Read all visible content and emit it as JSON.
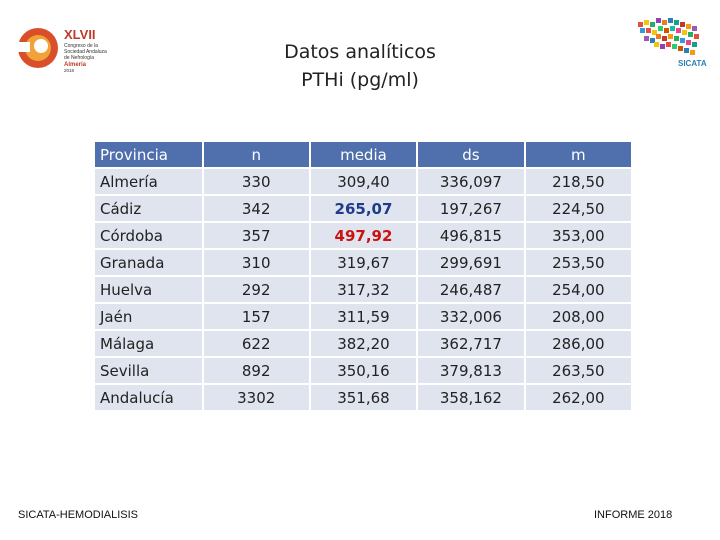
{
  "logo_left": {
    "number": "XLVII",
    "line1": "Congreso de la",
    "line2": "Sociedad Andaluza",
    "line3": "de Nefrología",
    "city": "Almería",
    "date": "2018"
  },
  "logo_right": {
    "name": "SICATA"
  },
  "title": {
    "line1": "Datos analíticos",
    "line2": "PTHi (pg/ml)"
  },
  "table": {
    "headers": [
      "Provincia",
      "n",
      "media",
      "ds",
      "m"
    ],
    "rows": [
      [
        "Almería",
        "330",
        "309,40",
        "336,097",
        "218,50"
      ],
      [
        "Cádiz",
        "342",
        "265,07",
        "197,267",
        "224,50"
      ],
      [
        "Córdoba",
        "357",
        "497,92",
        "496,815",
        "353,00"
      ],
      [
        "Granada",
        "310",
        "319,67",
        "299,691",
        "253,50"
      ],
      [
        "Huelva",
        "292",
        "317,32",
        "246,487",
        "254,00"
      ],
      [
        "Jaén",
        "157",
        "311,59",
        "332,006",
        "208,00"
      ],
      [
        "Málaga",
        "622",
        "382,20",
        "362,717",
        "286,00"
      ],
      [
        "Sevilla",
        "892",
        "350,16",
        "379,813",
        "263,50"
      ],
      [
        "Andalucía",
        "3302",
        "351,68",
        "358,162",
        "262,00"
      ]
    ]
  },
  "colors": {
    "header_bg": "#4f6fad",
    "cell_bg": "#dfe4ef",
    "highlight_min": "#1f3c8a",
    "highlight_max": "#cc1111"
  },
  "footer": {
    "left": "SICATA-HEMODIALISIS",
    "right": "INFORME 2018"
  }
}
